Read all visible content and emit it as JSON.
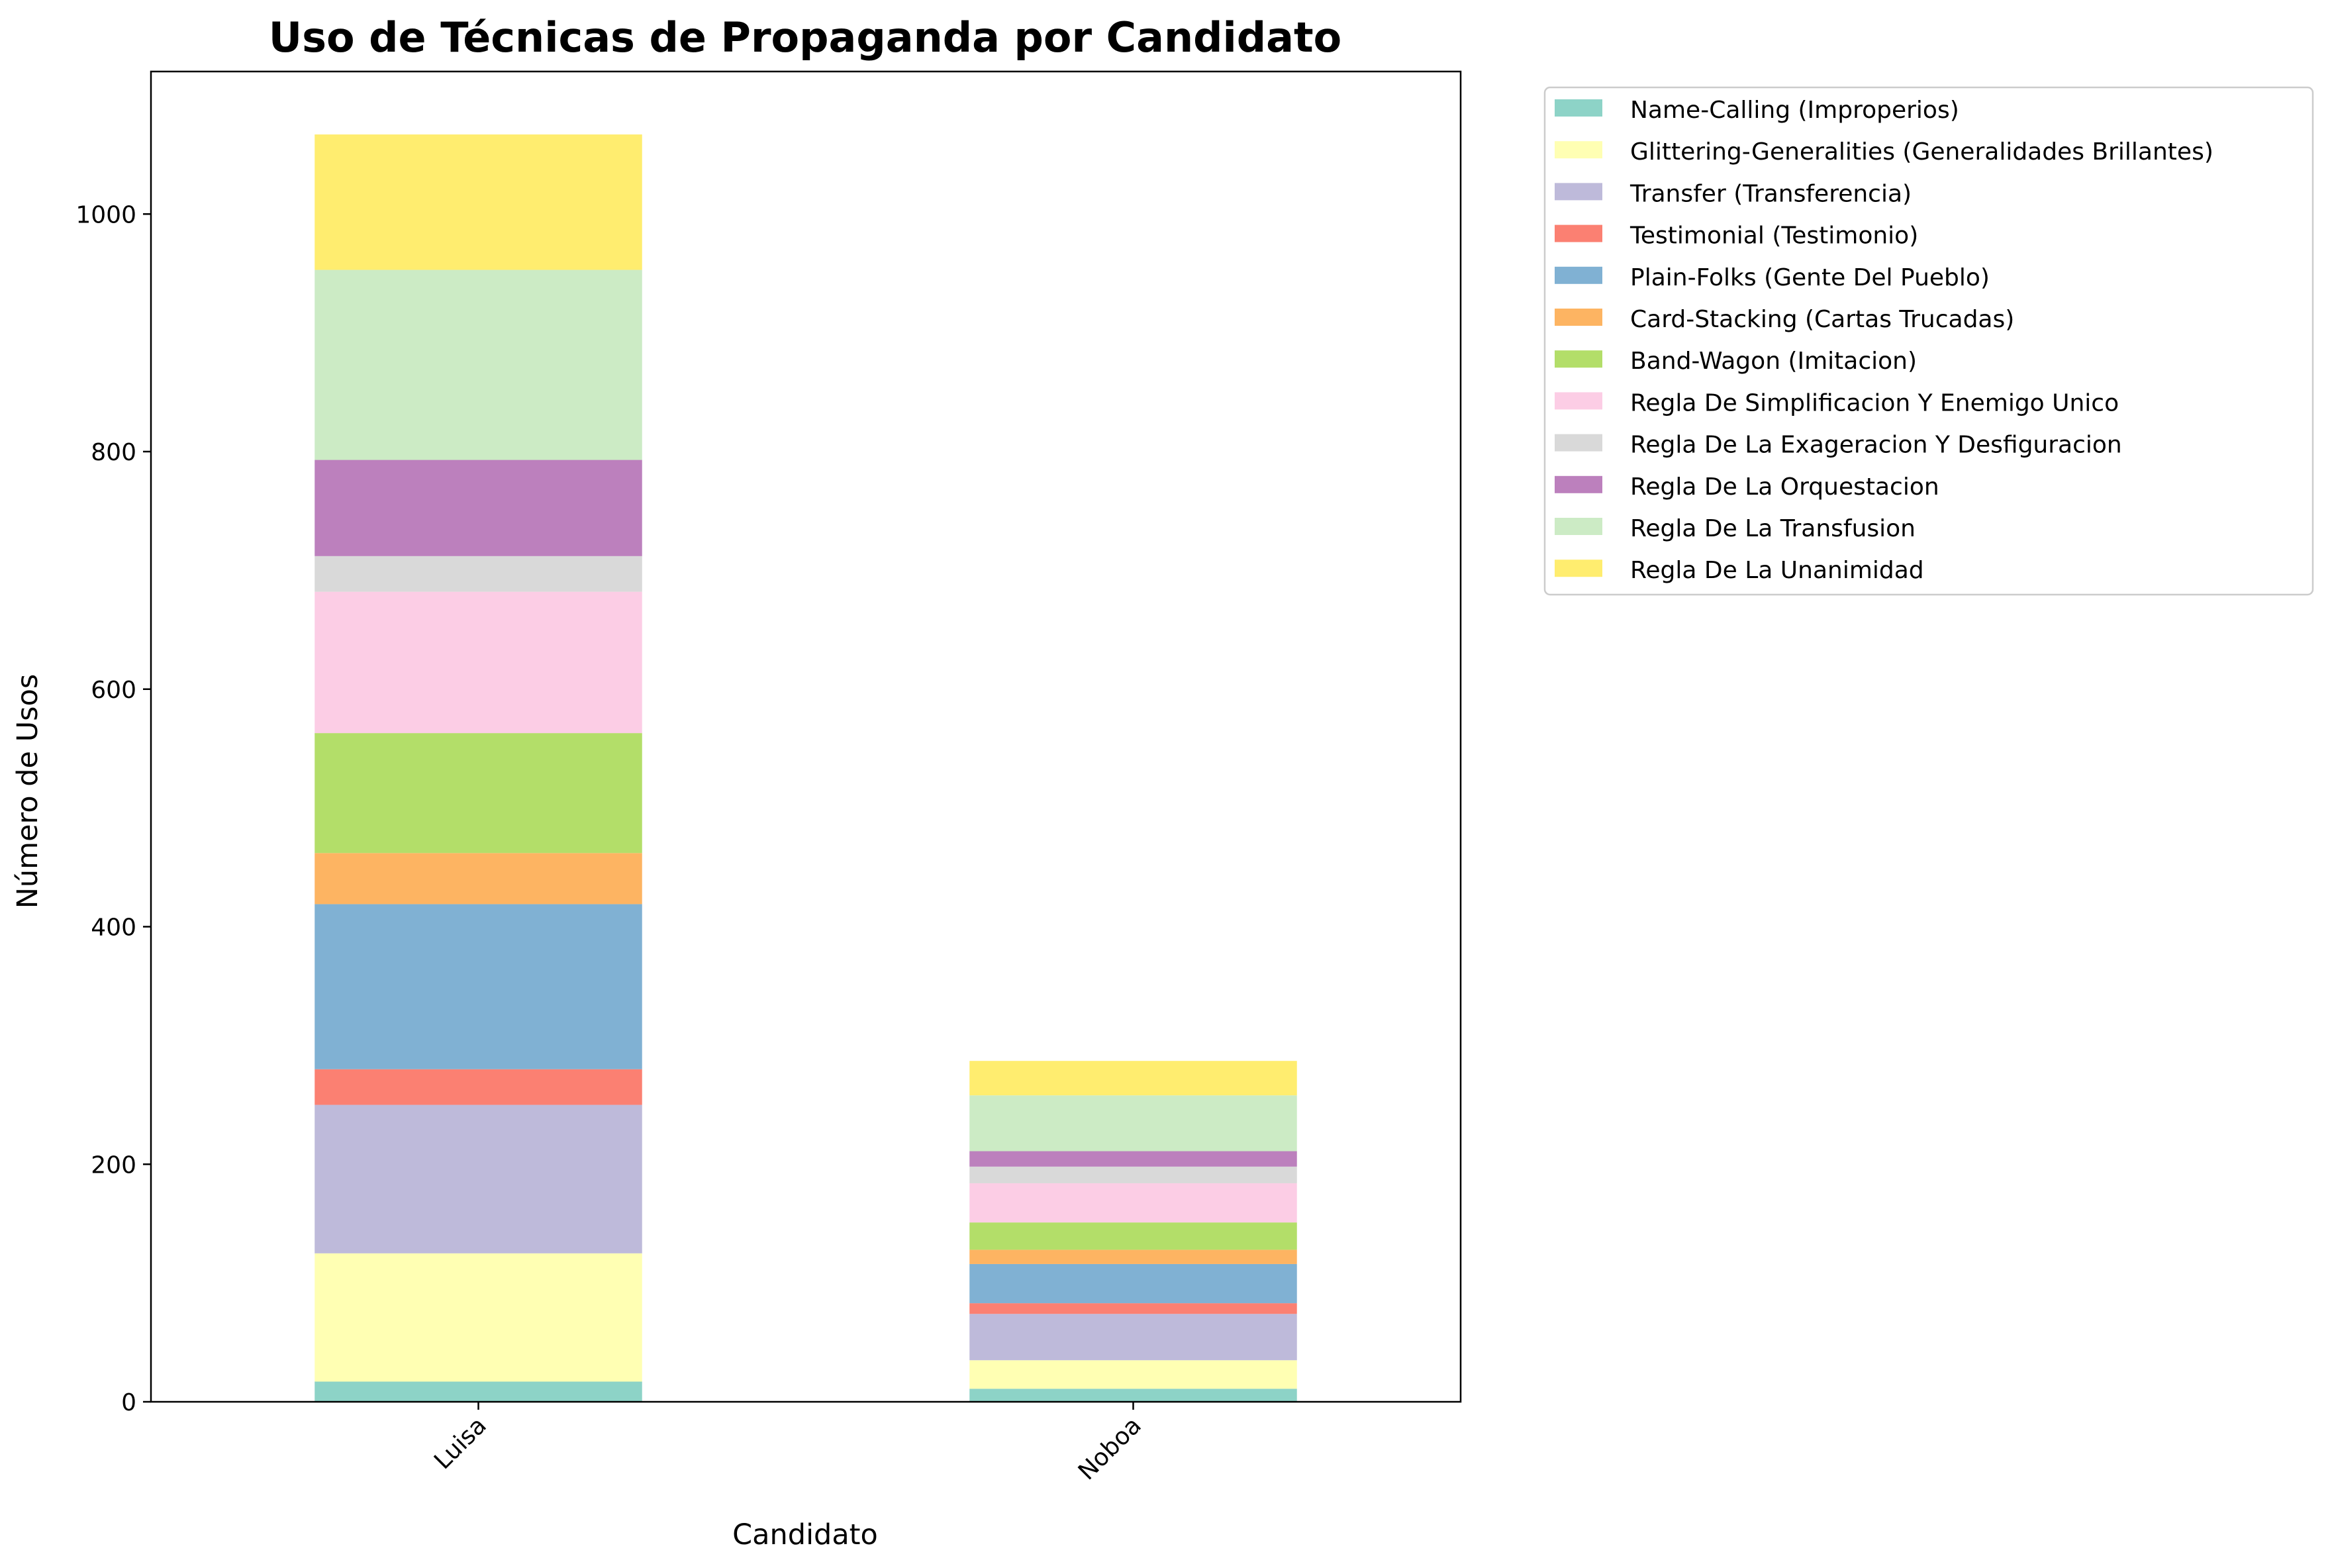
{
  "chart_data": {
    "type": "bar",
    "stacked": true,
    "title": "Uso de Técnicas de Propaganda por Candidato",
    "xlabel": "Candidato",
    "ylabel": "Número de Usos",
    "categories": [
      "Luisa",
      "Noboa"
    ],
    "ylim": [
      0,
      1120
    ],
    "yticks": [
      0,
      200,
      400,
      600,
      800,
      1000
    ],
    "grid": false,
    "legend_position": "outside-top-right",
    "series": [
      {
        "name": "Name-Calling (Improperios)",
        "color": "#8dd3c7",
        "values": [
          17,
          11
        ]
      },
      {
        "name": "Glittering-Generalities (Generalidades Brillantes)",
        "color": "#ffffb3",
        "values": [
          108,
          24
        ]
      },
      {
        "name": "Transfer (Transferencia)",
        "color": "#bebada",
        "values": [
          125,
          39
        ]
      },
      {
        "name": "Testimonial (Testimonio)",
        "color": "#fb8072",
        "values": [
          30,
          9
        ]
      },
      {
        "name": "Plain-Folks (Gente Del Pueblo)",
        "color": "#80b1d3",
        "values": [
          139,
          33
        ]
      },
      {
        "name": "Card-Stacking (Cartas Trucadas)",
        "color": "#fdb462",
        "values": [
          43,
          12
        ]
      },
      {
        "name": "Band-Wagon (Imitacion)",
        "color": "#b3de69",
        "values": [
          101,
          23
        ]
      },
      {
        "name": "Regla De Simplificacion Y Enemigo Unico",
        "color": "#fccde5",
        "values": [
          119,
          33
        ]
      },
      {
        "name": "Regla De La Exageracion Y Desfiguracion",
        "color": "#d9d9d9",
        "values": [
          30,
          14
        ]
      },
      {
        "name": "Regla De La Orquestacion",
        "color": "#bc80bd",
        "values": [
          81,
          13
        ]
      },
      {
        "name": "Regla De La Transfusion",
        "color": "#ccebc5",
        "values": [
          160,
          47
        ]
      },
      {
        "name": "Regla De La Unanimidad",
        "color": "#ffed6f",
        "values": [
          114,
          29
        ]
      }
    ]
  }
}
